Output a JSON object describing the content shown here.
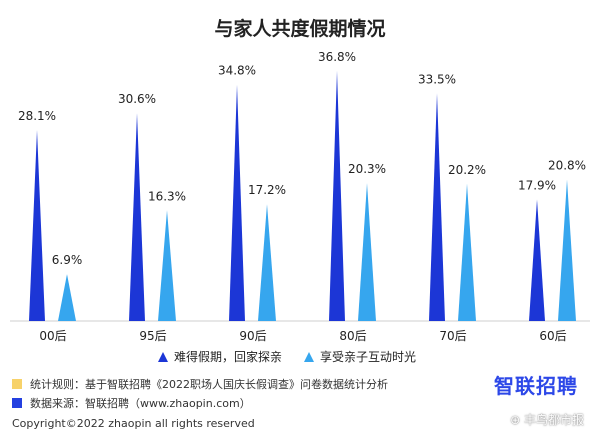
{
  "chart_data": {
    "type": "bar",
    "title": "与家人共度假期情况",
    "categories": [
      "00后",
      "95后",
      "90后",
      "80后",
      "70后",
      "60后"
    ],
    "series": [
      {
        "name": "难得假期，回家探亲",
        "color": "#1c36d6",
        "values": [
          28.1,
          30.6,
          34.8,
          36.8,
          33.5,
          17.9
        ],
        "labels": [
          "28.1%",
          "30.6%",
          "34.8%",
          "36.8%",
          "33.5%",
          "17.9%"
        ]
      },
      {
        "name": "享受亲子互动时光",
        "color": "#36a6ee",
        "values": [
          6.9,
          16.3,
          17.2,
          20.3,
          20.2,
          20.8
        ],
        "labels": [
          "6.9%",
          "16.3%",
          "17.2%",
          "20.3%",
          "20.2%",
          "20.8%"
        ]
      }
    ],
    "ylim": [
      0,
      40
    ],
    "grid": false,
    "legend": "bottom"
  },
  "footer": {
    "note1": "统计规则：基于智联招聘《2022职场人国庆长假调查》问卷数据统计分析",
    "note1_color": "#f7d26a",
    "note2": "数据来源：智联招聘（www.zhaopin.com）",
    "note2_color": "#2440e0",
    "brand": "智联招聘",
    "copyright": "Copyright©2022 zhaopin all rights reserved",
    "watermark": "⊕ 丰鸟都市报"
  }
}
